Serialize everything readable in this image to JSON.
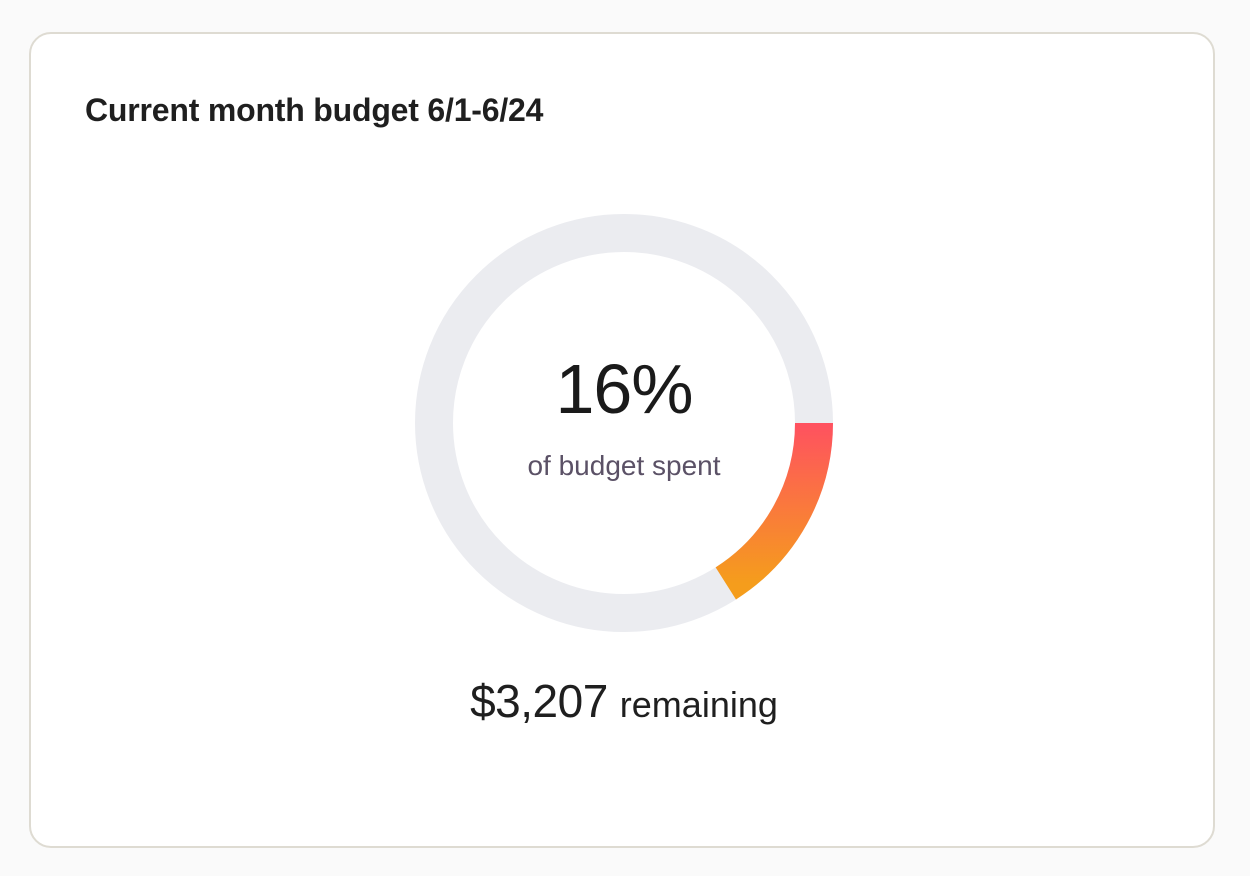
{
  "card": {
    "title": "Current month budget 6/1-6/24"
  },
  "budget": {
    "percent_label": "16%",
    "percent_spent": 16,
    "caption": "of budget spent",
    "remaining_amount": "$3,207",
    "remaining_label": "remaining"
  },
  "colors": {
    "track": "#ebecf0",
    "progress_start": "#ff5160",
    "progress_end": "#f59d1c",
    "card_border": "#dedbd2"
  }
}
